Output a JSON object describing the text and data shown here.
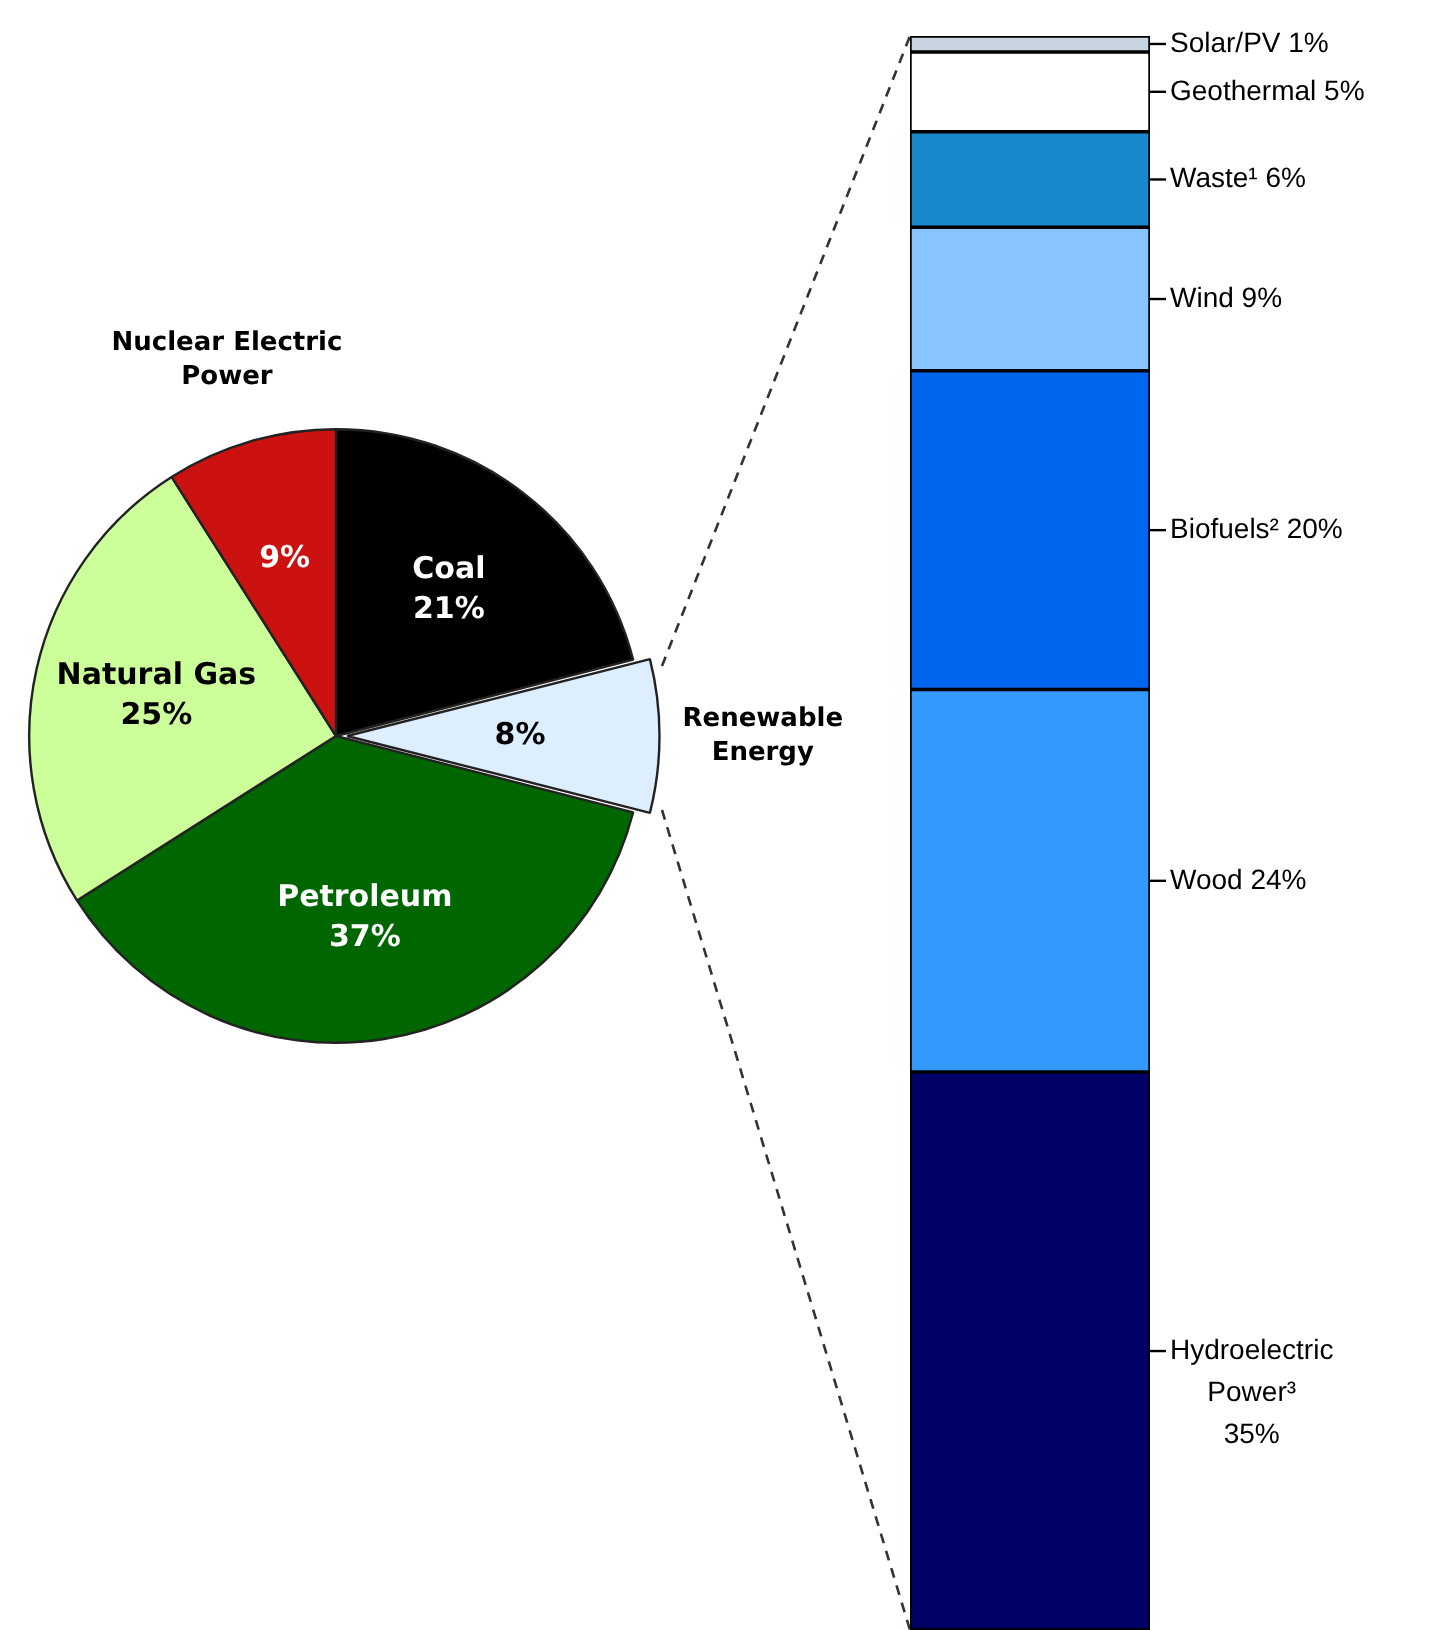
{
  "chart_data": [
    {
      "type": "pie",
      "categories": [
        "Coal",
        "Renewable Energy",
        "Petroleum",
        "Natural Gas",
        "Nuclear Electric Power"
      ],
      "values": [
        21,
        8,
        37,
        25,
        9
      ],
      "colors": [
        "#000000",
        "#ddeeff",
        "#006600",
        "#ccff99",
        "#cc1111"
      ],
      "value_labels": [
        "21%",
        "8%",
        "37%",
        "25%",
        "9%"
      ],
      "legend": false
    },
    {
      "type": "bar",
      "stacked": true,
      "categories": [
        null
      ],
      "legend": false,
      "series": [
        {
          "color": "#000066",
          "values": [
            35
          ],
          "value_labels": [
            "Hydroelectric Power³ 35%"
          ]
        },
        {
          "color": "#3399ff",
          "values": [
            24
          ],
          "value_labels": [
            "Wood 24%"
          ]
        },
        {
          "color": "#0066ee",
          "values": [
            20
          ],
          "value_labels": [
            "Biofuels² 20%"
          ]
        },
        {
          "color": "#88c4ff",
          "values": [
            9
          ],
          "value_labels": [
            "Wind 9%"
          ]
        },
        {
          "color": "#1a88cc",
          "values": [
            6
          ],
          "value_labels": [
            "Waste¹ 6%"
          ]
        },
        {
          "color": "#ffffff",
          "values": [
            5
          ],
          "value_labels": [
            "Geothermal 5%"
          ]
        },
        {
          "color": "#c8d4e0",
          "values": [
            1
          ],
          "value_labels": [
            "Solar/PV 1%"
          ]
        }
      ]
    }
  ]
}
